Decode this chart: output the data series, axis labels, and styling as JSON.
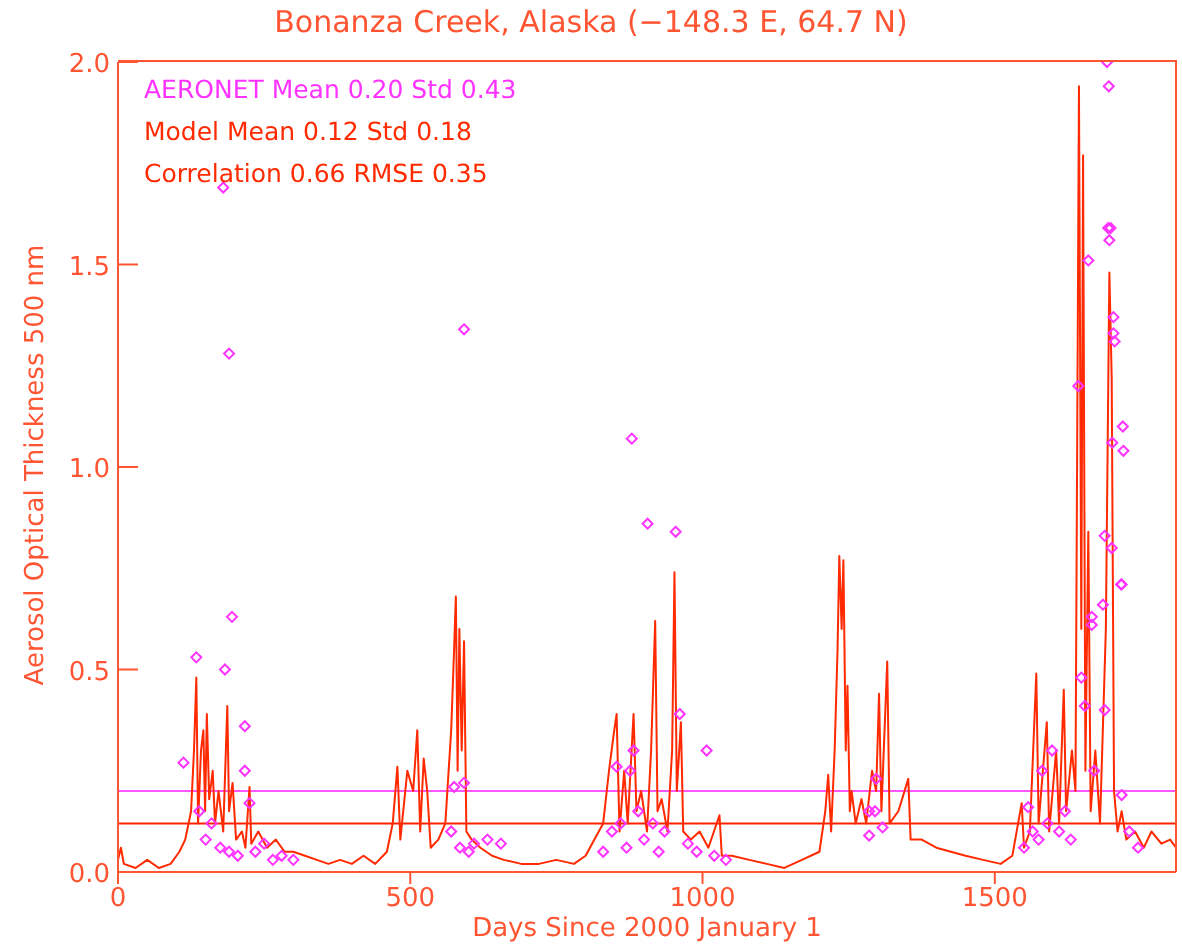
{
  "chart_data": {
    "type": "line",
    "title": "Bonanza Creek, Alaska   (−148.3 E,  64.7 N)",
    "xlabel": "Days Since 2000 January 1",
    "ylabel": "Aerosol Optical Thickness 500 nm",
    "annotations": [
      "AERONET Mean 0.20 Std 0.43",
      "Model Mean 0.12 Std 0.18",
      "Correlation 0.66 RMSE 0.35"
    ],
    "xlim": [
      0,
      1810
    ],
    "xticks": [
      0,
      500,
      1000,
      1500
    ],
    "ylim": [
      0,
      2
    ],
    "yticks": [
      {
        "value": 0,
        "label": "0.0"
      },
      {
        "value": 0.5,
        "label": "0.5"
      },
      {
        "value": 1,
        "label": "1.0"
      },
      {
        "value": 1.5,
        "label": "1.5"
      },
      {
        "value": 2,
        "label": "2.0"
      }
    ],
    "grid": false,
    "ref_lines": [
      {
        "axis": "y",
        "value": 0.2,
        "label": null,
        "color": "#ff55ff"
      },
      {
        "axis": "y",
        "value": 0.12,
        "label": null,
        "color": "#ff2200"
      }
    ],
    "series": [
      {
        "type": "scatter",
        "color": "#ff33ff",
        "marker": "diamond",
        "x": [
          112,
          134,
          139,
          150,
          160,
          175,
          183,
          190,
          195,
          205,
          217,
          217,
          225,
          235,
          250,
          265,
          280,
          300,
          180,
          190,
          570,
          575,
          585,
          592,
          600,
          609,
          632,
          655,
          592,
          830,
          845,
          853,
          860,
          870,
          876,
          879,
          882,
          890,
          900,
          906,
          915,
          925,
          935,
          954,
          961,
          975,
          990,
          1007,
          1020,
          1040,
          1285,
          1285,
          1297,
          1308,
          1295,
          1550,
          1557,
          1565,
          1575,
          1581,
          1590,
          1598,
          1610,
          1620,
          1630,
          1643,
          1648,
          1654,
          1660,
          1666,
          1666,
          1670,
          1685,
          1688,
          1688,
          1692,
          1695,
          1694,
          1698,
          1696,
          1700,
          1701,
          1703,
          1703,
          1705,
          1716,
          1717,
          1717,
          1719,
          1720,
          1730,
          1745
        ],
        "values": [
          0.27,
          0.53,
          0.15,
          0.08,
          0.12,
          0.06,
          0.5,
          0.05,
          0.63,
          0.04,
          0.36,
          0.25,
          0.17,
          0.05,
          0.07,
          0.03,
          0.04,
          0.03,
          1.69,
          1.28,
          0.1,
          0.21,
          0.06,
          0.22,
          0.05,
          0.07,
          0.08,
          0.07,
          1.34,
          0.05,
          0.1,
          0.26,
          0.12,
          0.06,
          0.25,
          1.07,
          0.3,
          0.15,
          0.08,
          0.86,
          0.12,
          0.05,
          0.1,
          0.84,
          0.39,
          0.07,
          0.05,
          0.3,
          0.04,
          0.03,
          0.15,
          0.09,
          0.23,
          0.11,
          0.15,
          0.06,
          0.16,
          0.1,
          0.08,
          0.25,
          0.12,
          0.3,
          0.1,
          0.15,
          0.08,
          1.2,
          0.48,
          0.41,
          1.51,
          0.61,
          0.63,
          0.25,
          0.66,
          0.83,
          0.4,
          2.0,
          1.94,
          1.59,
          1.59,
          1.56,
          0.8,
          1.06,
          1.37,
          1.33,
          1.31,
          0.71,
          0.71,
          0.19,
          1.1,
          1.04,
          0.1,
          0.06
        ]
      },
      {
        "type": "line",
        "color": "#ff2a00",
        "x": [
          0,
          5,
          10,
          30,
          50,
          70,
          90,
          105,
          115,
          125,
          130,
          134,
          137,
          142,
          146,
          149,
          152,
          156,
          162,
          166,
          172,
          180,
          187,
          190,
          196,
          202,
          212,
          218,
          225,
          228,
          240,
          255,
          270,
          285,
          300,
          320,
          340,
          360,
          380,
          400,
          420,
          440,
          460,
          470,
          478,
          483,
          495,
          505,
          512,
          517,
          523,
          529,
          535,
          548,
          560,
          570,
          575,
          578,
          581,
          584,
          588,
          592,
          596,
          605,
          620,
          640,
          660,
          690,
          720,
          750,
          780,
          800,
          815,
          830,
          840,
          848,
          853,
          858,
          866,
          872,
          882,
          887,
          895,
          905,
          912,
          919,
          923,
          930,
          940,
          948,
          952,
          956,
          963,
          967,
          980,
          995,
          1010,
          1029,
          1033,
          1050,
          1080,
          1110,
          1140,
          1170,
          1200,
          1210,
          1215,
          1220,
          1226,
          1231,
          1234,
          1238,
          1241,
          1245,
          1248,
          1252,
          1255,
          1262,
          1272,
          1280,
          1290,
          1297,
          1302,
          1306,
          1316,
          1320,
          1335,
          1352,
          1356,
          1375,
          1400,
          1425,
          1450,
          1480,
          1510,
          1530,
          1546,
          1550,
          1560,
          1571,
          1575,
          1589,
          1593,
          1605,
          1610,
          1618,
          1622,
          1632,
          1638,
          1644,
          1648,
          1651,
          1655,
          1660,
          1664,
          1672,
          1680,
          1690,
          1696,
          1700,
          1704,
          1710,
          1717,
          1725,
          1740,
          1755,
          1768,
          1785,
          1800,
          1810
        ],
        "values": [
          0.03,
          0.06,
          0.02,
          0.01,
          0.03,
          0.01,
          0.02,
          0.05,
          0.08,
          0.15,
          0.3,
          0.48,
          0.12,
          0.3,
          0.35,
          0.15,
          0.39,
          0.18,
          0.25,
          0.12,
          0.2,
          0.1,
          0.41,
          0.15,
          0.22,
          0.08,
          0.1,
          0.06,
          0.21,
          0.07,
          0.1,
          0.06,
          0.08,
          0.05,
          0.05,
          0.04,
          0.03,
          0.02,
          0.03,
          0.02,
          0.04,
          0.02,
          0.05,
          0.12,
          0.26,
          0.08,
          0.25,
          0.2,
          0.35,
          0.1,
          0.28,
          0.2,
          0.06,
          0.08,
          0.12,
          0.35,
          0.55,
          0.68,
          0.25,
          0.6,
          0.3,
          0.57,
          0.1,
          0.08,
          0.06,
          0.04,
          0.03,
          0.02,
          0.02,
          0.03,
          0.02,
          0.04,
          0.08,
          0.12,
          0.25,
          0.34,
          0.39,
          0.1,
          0.25,
          0.12,
          0.39,
          0.15,
          0.2,
          0.1,
          0.3,
          0.62,
          0.15,
          0.18,
          0.1,
          0.3,
          0.74,
          0.2,
          0.37,
          0.1,
          0.08,
          0.1,
          0.06,
          0.14,
          0.04,
          0.04,
          0.03,
          0.02,
          0.01,
          0.03,
          0.05,
          0.15,
          0.24,
          0.1,
          0.3,
          0.55,
          0.78,
          0.6,
          0.77,
          0.3,
          0.46,
          0.15,
          0.2,
          0.12,
          0.18,
          0.12,
          0.25,
          0.2,
          0.44,
          0.15,
          0.52,
          0.12,
          0.15,
          0.23,
          0.08,
          0.08,
          0.06,
          0.05,
          0.04,
          0.03,
          0.02,
          0.04,
          0.17,
          0.06,
          0.1,
          0.49,
          0.12,
          0.37,
          0.1,
          0.3,
          0.12,
          0.45,
          0.15,
          0.3,
          0.2,
          1.94,
          0.6,
          1.77,
          0.25,
          0.84,
          0.15,
          0.3,
          0.12,
          0.6,
          1.48,
          1.22,
          0.2,
          0.1,
          0.15,
          0.08,
          0.1,
          0.06,
          0.1,
          0.07,
          0.08,
          0.06
        ]
      }
    ]
  }
}
